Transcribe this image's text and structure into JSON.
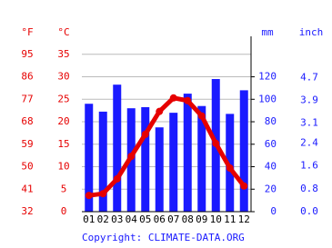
{
  "chart_data": {
    "type": "climate",
    "categories": [
      "01",
      "02",
      "03",
      "04",
      "05",
      "06",
      "07",
      "08",
      "09",
      "10",
      "11",
      "12"
    ],
    "series": [
      {
        "name": "mm",
        "color": "#1a1aff",
        "axis": "y2",
        "values": [
          96,
          89,
          113,
          92,
          93,
          75,
          88,
          105,
          94,
          118,
          87,
          108
        ]
      },
      {
        "name": "°C",
        "color": "#e60000",
        "values": [
          3.6,
          4,
          7.3,
          12.3,
          17.2,
          22.3,
          25.3,
          24.7,
          21.3,
          15.2,
          9.7,
          5.7
        ]
      }
    ],
    "y_label_f": "°F",
    "y_label_c": "°C",
    "y2_label_mm": "mm",
    "y2_label_inch": "inch",
    "ylim": [
      0,
      39
    ],
    "yticks": [
      0,
      5,
      10,
      15,
      20,
      25,
      30,
      35
    ],
    "yticks_f": [
      32,
      41,
      50,
      59,
      68,
      77,
      86,
      95
    ],
    "y2lim": [
      0,
      156
    ],
    "y2ticks": [
      0,
      20,
      40,
      60,
      80,
      100,
      120
    ],
    "y2ticks_inch": [
      {
        "value": 0,
        "label": "0.0"
      },
      0.8,
      1.6,
      2.4,
      3.1,
      3.9,
      4.7
    ],
    "grid": true,
    "credit": "Copyright: CLIMATE-DATA.ORG"
  }
}
